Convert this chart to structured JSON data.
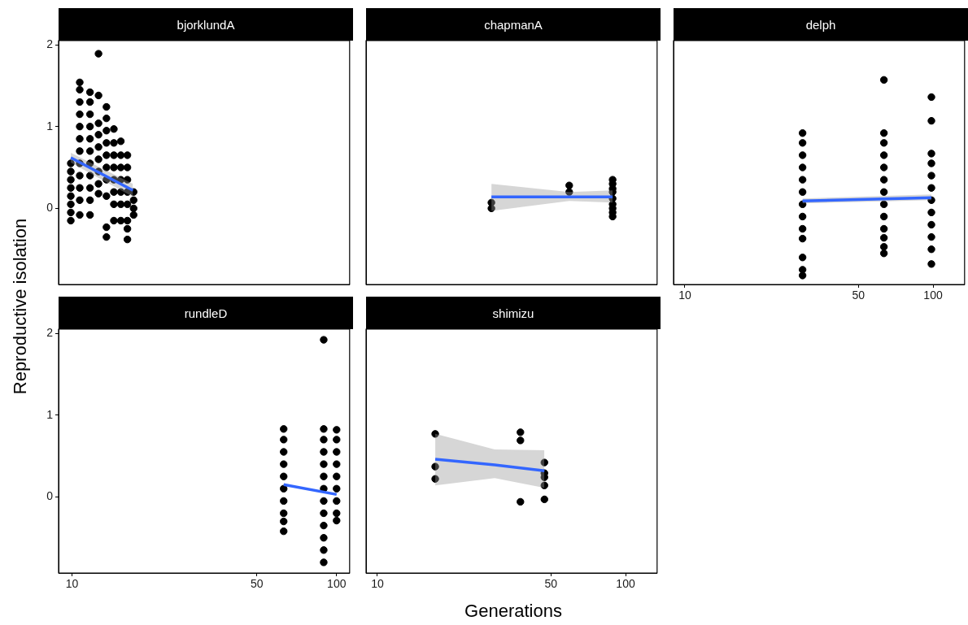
{
  "chart_data": [
    {
      "type": "scatter",
      "title": "bjorklundA",
      "ylabel": "Reproductive isolation",
      "log": "x",
      "xlim": [
        8.9,
        112
      ],
      "xticks": [
        10,
        50,
        100
      ],
      "ylim": [
        -0.93,
        2.05
      ],
      "yticks": [
        0,
        1,
        2
      ],
      "tick_labels": "y",
      "series": [
        {
          "type": "scatter",
          "marker": "circle",
          "color": "#000000",
          "x": [
            9.9,
            9.9,
            9.9,
            9.9,
            9.9,
            9.9,
            9.9,
            9.9,
            10.7,
            10.7,
            10.7,
            10.7,
            10.7,
            10.7,
            10.7,
            10.7,
            10.7,
            10.7,
            10.7,
            10.7,
            11.7,
            11.7,
            11.7,
            11.7,
            11.7,
            11.7,
            11.7,
            11.7,
            11.7,
            11.7,
            11.7,
            12.6,
            12.6,
            12.6,
            12.6,
            12.6,
            12.6,
            12.6,
            12.6,
            12.6,
            13.5,
            13.5,
            13.5,
            13.5,
            13.5,
            13.5,
            13.5,
            13.5,
            13.5,
            13.5,
            14.4,
            14.4,
            14.4,
            14.4,
            14.4,
            14.4,
            14.4,
            14.4,
            15.3,
            15.3,
            15.3,
            15.3,
            15.3,
            15.3,
            15.3,
            16.2,
            16.2,
            16.2,
            16.2,
            16.2,
            16.2,
            16.2,
            16.2,
            17.1,
            17.1,
            17.1,
            17.1
          ],
          "values": [
            0.55,
            0.45,
            0.35,
            0.25,
            0.15,
            0.05,
            -0.05,
            -0.15,
            1.54,
            1.45,
            1.3,
            1.15,
            1.0,
            0.85,
            0.7,
            0.55,
            0.4,
            0.25,
            0.1,
            -0.08,
            1.42,
            1.3,
            1.15,
            1.0,
            0.85,
            0.7,
            0.55,
            0.4,
            0.25,
            0.1,
            -0.08,
            1.89,
            1.38,
            1.04,
            0.9,
            0.75,
            0.6,
            0.45,
            0.3,
            0.18,
            1.24,
            1.1,
            0.95,
            0.8,
            0.65,
            0.5,
            0.35,
            0.15,
            -0.23,
            -0.35,
            0.97,
            0.8,
            0.65,
            0.5,
            0.35,
            0.2,
            0.05,
            -0.15,
            0.82,
            0.65,
            0.5,
            0.35,
            0.2,
            0.05,
            -0.15,
            0.65,
            0.5,
            0.35,
            0.2,
            0.05,
            -0.15,
            -0.25,
            -0.38,
            0.2,
            0.1,
            0,
            -0.08
          ]
        },
        {
          "type": "line",
          "color": "#3366ff",
          "x": [
            9.9,
            17.0
          ],
          "values": [
            0.62,
            0.22
          ],
          "lower": [
            0.56,
            0.14
          ],
          "upper": [
            0.68,
            0.3
          ]
        }
      ]
    },
    {
      "type": "scatter",
      "title": "chapmanA",
      "log": "x",
      "xlim": [
        9,
        134
      ],
      "xticks": [
        10,
        50,
        100
      ],
      "ylim": [
        -0.93,
        2.05
      ],
      "yticks": [
        0,
        1,
        2
      ],
      "tick_labels": false,
      "series": [
        {
          "type": "scatter",
          "marker": "circle",
          "color": "#000000",
          "x": [
            28.8,
            28.8,
            59.3,
            59.3,
            88.7,
            88.7,
            88.7,
            88.7,
            88.7,
            88.7,
            88.7,
            88.7,
            88.7
          ],
          "values": [
            0.07,
            0.0,
            0.28,
            0.2,
            0.35,
            0.3,
            0.24,
            0.2,
            0.12,
            0.05,
            0,
            -0.05,
            -0.1
          ]
        },
        {
          "type": "line",
          "color": "#3366ff",
          "x": [
            28.8,
            59.3,
            88.7
          ],
          "values": [
            0.14,
            0.14,
            0.14
          ],
          "lower": [
            -0.03,
            0.09,
            0.07
          ],
          "upper": [
            0.3,
            0.2,
            0.22
          ]
        }
      ]
    },
    {
      "type": "scatter",
      "title": "delph",
      "log": "x",
      "xlim": [
        9,
        134
      ],
      "xticks": [
        10,
        50,
        100
      ],
      "ylim": [
        -0.93,
        2.05
      ],
      "yticks": [
        0,
        1,
        2
      ],
      "tick_labels": "x",
      "series": [
        {
          "type": "scatter",
          "marker": "circle",
          "color": "#000000",
          "x": [
            29.8,
            29.8,
            29.8,
            29.8,
            29.8,
            29.8,
            29.8,
            29.8,
            29.8,
            29.8,
            29.8,
            29.8,
            29.8,
            63.4,
            63.4,
            63.4,
            63.4,
            63.4,
            63.4,
            63.4,
            63.4,
            63.4,
            63.4,
            63.4,
            63.4,
            63.4,
            98.5,
            98.5,
            98.5,
            98.5,
            98.5,
            98.5,
            98.5,
            98.5,
            98.5,
            98.5,
            98.5,
            98.5
          ],
          "values": [
            0.92,
            0.8,
            0.65,
            0.5,
            0.35,
            0.2,
            0.05,
            -0.1,
            -0.25,
            -0.37,
            -0.6,
            -0.75,
            -0.82,
            1.57,
            0.92,
            0.8,
            0.65,
            0.5,
            0.35,
            0.2,
            0.05,
            -0.1,
            -0.25,
            -0.36,
            -0.47,
            -0.55,
            1.36,
            1.07,
            0.67,
            0.55,
            0.4,
            0.25,
            0.1,
            -0.05,
            -0.2,
            -0.35,
            -0.5,
            -0.68
          ]
        },
        {
          "type": "line",
          "color": "#3366ff",
          "x": [
            29.8,
            98.5
          ],
          "values": [
            0.09,
            0.13
          ],
          "lower": [
            0.06,
            0.1
          ],
          "upper": [
            0.12,
            0.17
          ]
        }
      ]
    },
    {
      "type": "scatter",
      "title": "rundleD",
      "log": "x",
      "xlim": [
        8.9,
        112
      ],
      "xticks": [
        10,
        50,
        100
      ],
      "ylim": [
        -0.93,
        2.05
      ],
      "yticks": [
        0,
        1,
        2
      ],
      "series": [
        {
          "type": "scatter",
          "marker": "circle",
          "color": "#000000",
          "x": [
            63.1,
            63.1,
            63.1,
            63.1,
            63.1,
            63.1,
            63.1,
            63.1,
            63.1,
            63.1,
            89.4,
            89.4,
            89.4,
            89.4,
            89.4,
            89.4,
            89.4,
            89.4,
            89.4,
            89.4,
            89.4,
            89.4,
            89.4,
            100,
            100,
            100,
            100,
            100,
            100,
            100,
            100,
            100
          ],
          "values": [
            0.83,
            0.7,
            0.55,
            0.4,
            0.25,
            0.1,
            -0.05,
            -0.2,
            -0.3,
            -0.42,
            1.92,
            0.83,
            0.7,
            0.55,
            0.4,
            0.25,
            0.1,
            -0.05,
            -0.2,
            -0.35,
            -0.5,
            -0.65,
            -0.8,
            0.82,
            0.7,
            0.55,
            0.4,
            0.25,
            0.1,
            -0.05,
            -0.2,
            -0.29
          ]
        },
        {
          "type": "line",
          "color": "#3366ff",
          "x": [
            63.1,
            100
          ],
          "values": [
            0.15,
            0.03
          ]
        }
      ]
    },
    {
      "type": "scatter",
      "title": "shimizu",
      "xlabel": "Generations",
      "log": "x",
      "xlim": [
        9,
        134
      ],
      "xticks": [
        10,
        50,
        100
      ],
      "ylim": [
        -0.93,
        2.05
      ],
      "yticks": [
        0,
        1,
        2
      ],
      "tick_labels": "x",
      "series": [
        {
          "type": "scatter",
          "marker": "circle",
          "color": "#000000",
          "x": [
            17.1,
            17.1,
            17.1,
            37.7,
            37.7,
            37.7,
            47.1,
            47.1,
            47.1,
            47.1,
            47.1
          ],
          "values": [
            0.77,
            0.37,
            0.22,
            0.79,
            0.69,
            -0.06,
            0.42,
            0.29,
            0.24,
            0.14,
            -0.03
          ]
        },
        {
          "type": "line",
          "color": "#3366ff",
          "x": [
            17.1,
            29.7,
            47.1
          ],
          "values": [
            0.46,
            0.39,
            0.32
          ],
          "lower": [
            0.14,
            0.23,
            0.11
          ],
          "upper": [
            0.77,
            0.58,
            0.57
          ]
        }
      ]
    }
  ]
}
